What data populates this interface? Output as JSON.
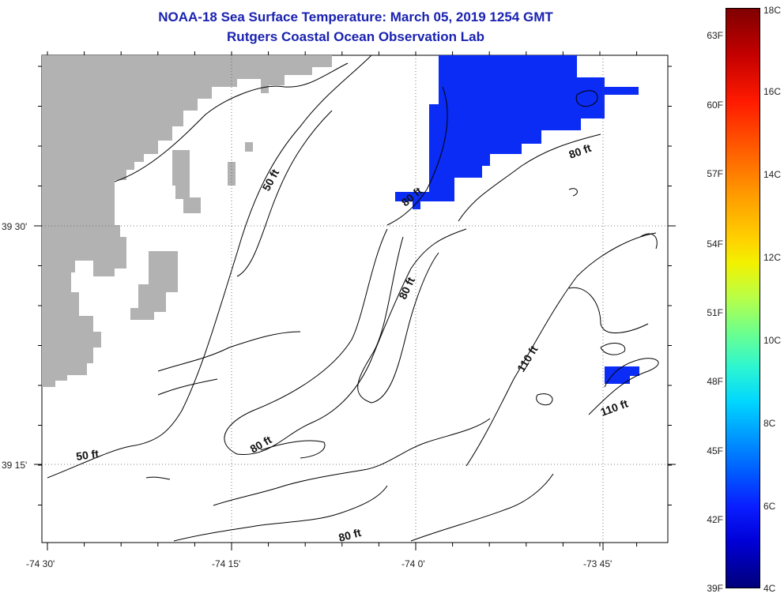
{
  "header": {
    "title": "NOAA-18 Sea Surface Temperature:  March 05, 2019 1254 GMT",
    "subtitle": "Rutgers Coastal Ocean Observation Lab"
  },
  "map": {
    "lon_labels": [
      "-74 30'",
      "-74 15'",
      "-74 0'",
      "-73 45'"
    ],
    "lat_labels": [
      "39 30'",
      "39 15'"
    ],
    "contour_labels": [
      "50 ft",
      "50 ft",
      "80 ft",
      "80 ft",
      "80 ft",
      "80 ft",
      "110 ft",
      "110 ft"
    ],
    "land_color": "#b2b2b2",
    "sst_color": "#0a2cf5"
  },
  "colorbar": {
    "fahrenheit_labels": [
      "63F",
      "60F",
      "57F",
      "54F",
      "51F",
      "48F",
      "45F",
      "42F",
      "39F"
    ],
    "celsius_labels": [
      "18C",
      "16C",
      "14C",
      "12C",
      "10C",
      "8C",
      "6C",
      "4C"
    ]
  }
}
